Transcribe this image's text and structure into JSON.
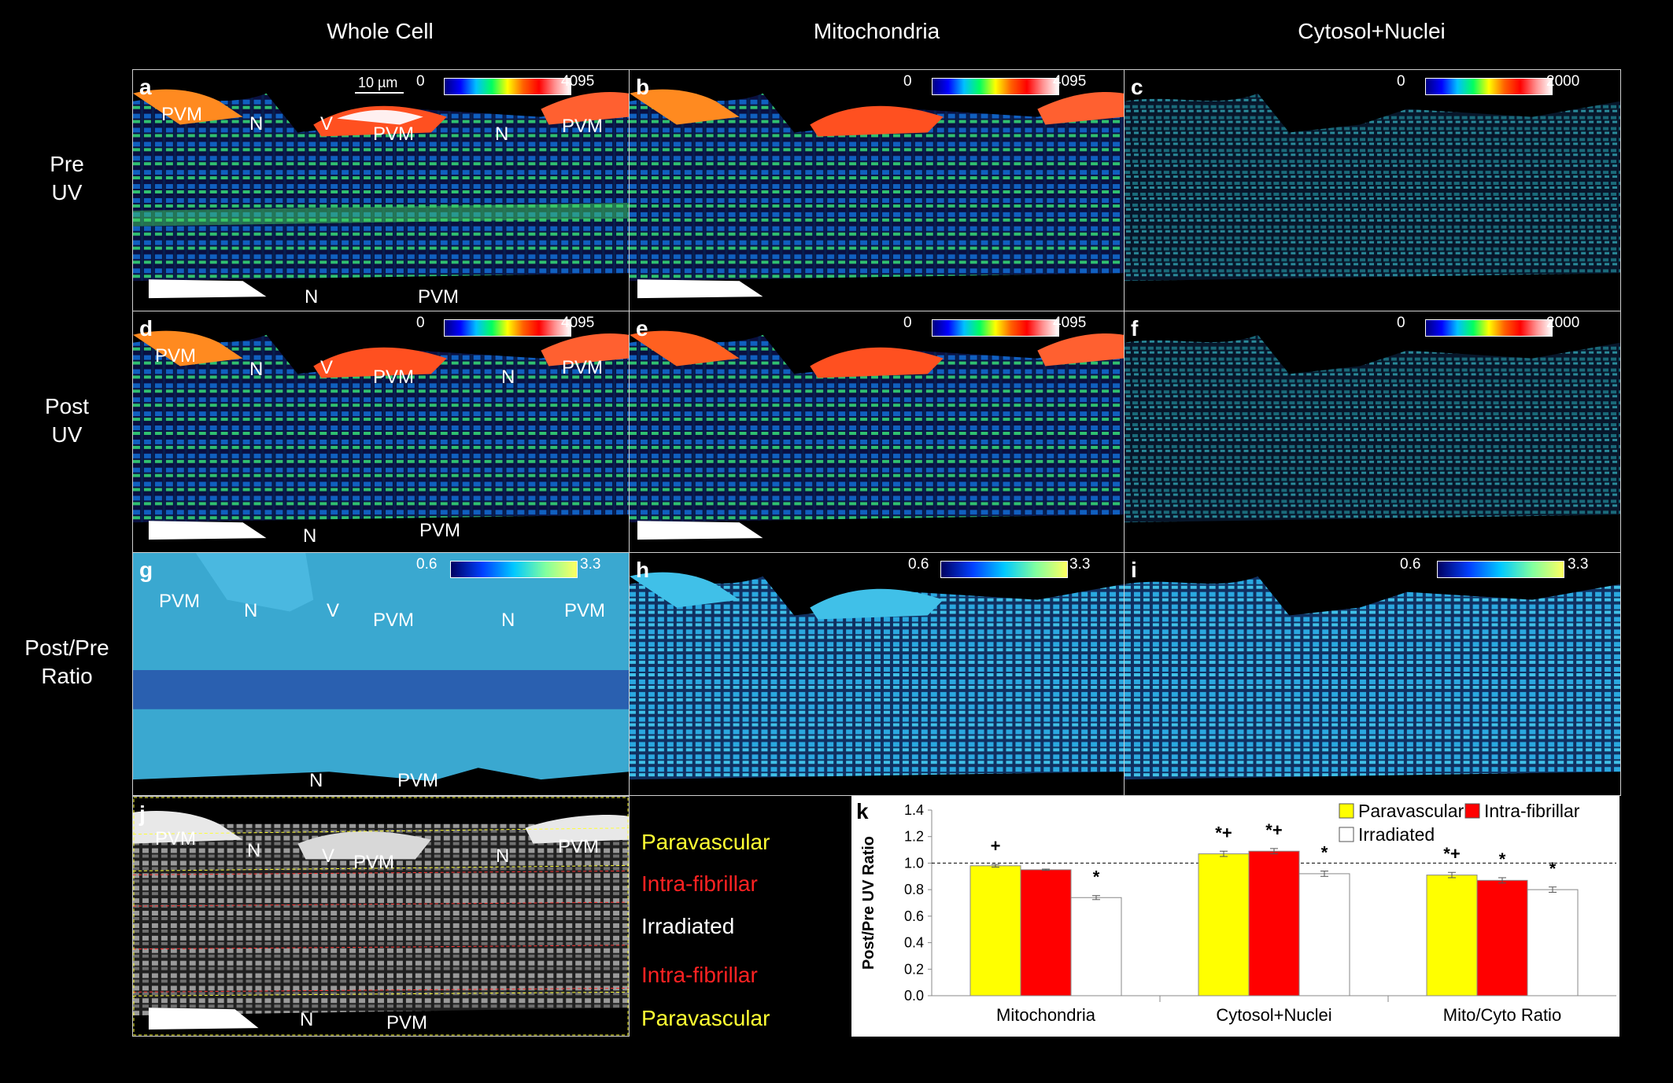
{
  "columns": [
    "Whole Cell",
    "Mitochondria",
    "Cytosol+Nuclei"
  ],
  "rows": [
    [
      "Pre",
      "UV"
    ],
    [
      "Post",
      "UV"
    ],
    [
      "Post/Pre",
      "Ratio"
    ]
  ],
  "panel_letters": [
    "a",
    "b",
    "c",
    "d",
    "e",
    "f",
    "g",
    "h",
    "i",
    "j",
    "k"
  ],
  "scale_bar": "10 µm",
  "colorbars": {
    "a": {
      "lo": "0",
      "hi": "4095"
    },
    "b": {
      "lo": "0",
      "hi": "4095"
    },
    "c": {
      "lo": "0",
      "hi": "2000"
    },
    "d": {
      "lo": "0",
      "hi": "4095"
    },
    "e": {
      "lo": "0",
      "hi": "4095"
    },
    "f": {
      "lo": "0",
      "hi": "2000"
    },
    "g": {
      "lo": "0.6",
      "hi": "3.3"
    },
    "h": {
      "lo": "0.6",
      "hi": "3.3"
    },
    "i": {
      "lo": "0.6",
      "hi": "3.3"
    }
  },
  "annotations": {
    "pvm": "PVM",
    "n": "N",
    "v": "V"
  },
  "regions": [
    "Paravascular",
    "Intra-fibrillar",
    "Irradiated",
    "Intra-fibrillar",
    "Paravascular"
  ],
  "region_colors": [
    "#ffff33",
    "#ff2222",
    "#ffffff",
    "#ff2222",
    "#ffff33"
  ],
  "chart_data": {
    "type": "bar",
    "categories": [
      "Mitochondria",
      "Cytosol+Nuclei",
      "Mito/Cyto Ratio"
    ],
    "series": [
      {
        "name": "Paravascular",
        "color": "#ffff00",
        "values": [
          0.98,
          1.07,
          0.91
        ],
        "errors": [
          0.01,
          0.02,
          0.02
        ],
        "marks": [
          "+",
          "*+",
          "*+"
        ]
      },
      {
        "name": "Intra-fibrillar",
        "color": "#ff0000",
        "values": [
          0.95,
          1.09,
          0.87
        ],
        "errors": [
          0.005,
          0.02,
          0.02
        ],
        "marks": [
          "",
          "*+",
          "*"
        ]
      },
      {
        "name": "Irradiated",
        "color": "#ffffff",
        "values": [
          0.74,
          0.92,
          0.8
        ],
        "errors": [
          0.015,
          0.02,
          0.02
        ],
        "marks": [
          "*",
          "*",
          "*"
        ]
      }
    ],
    "ylabel": "Post/Pre UV Ratio",
    "ylim": [
      0,
      1.4
    ],
    "yticks": [
      "0.0",
      "0.2",
      "0.4",
      "0.6",
      "0.8",
      "1.0",
      "1.2",
      "1.4"
    ],
    "reference_line": 1.0,
    "legend": "top-right"
  }
}
